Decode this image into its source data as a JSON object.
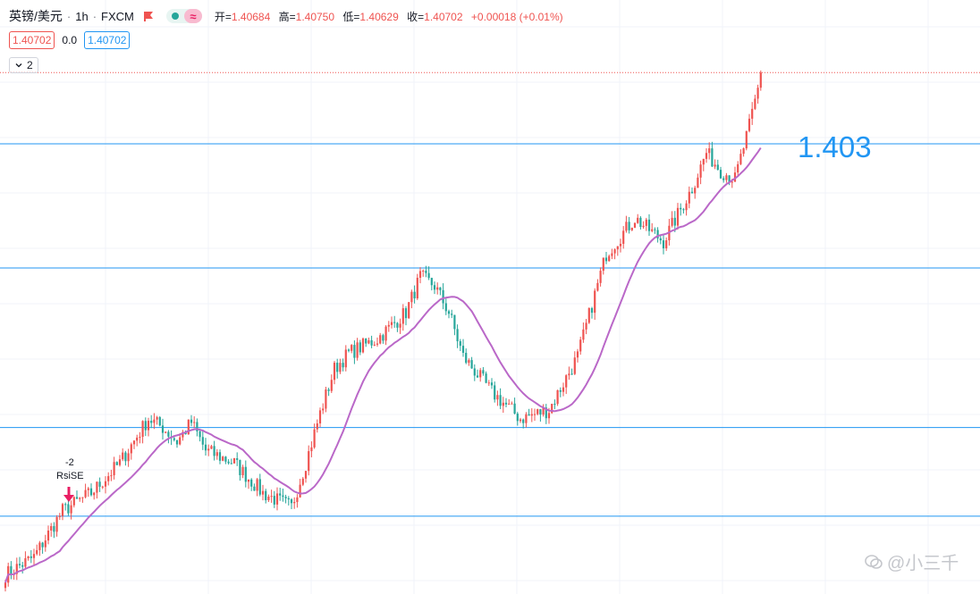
{
  "header": {
    "symbol": "英镑/美元",
    "interval": "1h",
    "source": "FXCM",
    "wave_label": "≈",
    "ohlc": [
      {
        "key": "开=",
        "value": "1.40684"
      },
      {
        "key": "高=",
        "value": "1.40750"
      },
      {
        "key": "低=",
        "value": "1.40629"
      },
      {
        "key": "收=",
        "value": "1.40702"
      }
    ],
    "change": "+0.00018 (+0.01%)"
  },
  "quote": {
    "bid": "1.40702",
    "spread": "0.0",
    "ask": "1.40702"
  },
  "indicator_toggle": {
    "count": "2"
  },
  "annotations": {
    "level_text": "1.403",
    "signal_value": "-2",
    "signal_name": "RsiSE"
  },
  "watermark": {
    "text": "@小三千"
  },
  "colors": {
    "up": "#ef5350",
    "down": "#26a69a",
    "ma": "#ba68c8",
    "hlines": "#2196f3",
    "price_line": "#ef5350"
  },
  "chart_data": {
    "type": "candlestick",
    "symbol": "英镑/美元",
    "interval": "1h",
    "current_price": 1.40702,
    "grid": true,
    "horizontal_levels": [
      1.403,
      1.396,
      1.387,
      1.382
    ],
    "anchors": {
      "index": [
        0,
        10,
        20,
        30,
        40,
        50,
        55,
        60,
        65,
        70,
        80,
        90,
        100,
        105,
        110,
        115,
        120,
        130,
        140,
        145,
        150,
        155,
        160,
        170,
        180,
        190,
        200,
        210,
        220,
        230,
        240,
        245,
        250,
        255,
        260,
        264
      ],
      "close": [
        1.3787,
        1.3797,
        1.3823,
        1.3833,
        1.385,
        1.3875,
        1.387,
        1.3862,
        1.3873,
        1.3857,
        1.385,
        1.3833,
        1.3825,
        1.385,
        1.3878,
        1.3903,
        1.3912,
        1.392,
        1.3935,
        1.3955,
        1.395,
        1.3935,
        1.391,
        1.389,
        1.3875,
        1.388,
        1.391,
        1.3968,
        1.3988,
        1.3975,
        1.4005,
        1.4025,
        1.4015,
        1.401,
        1.404,
        1.4068
      ]
    },
    "ma_period": 20,
    "signals": [
      {
        "index": 21,
        "value": -2,
        "name": "RsiSE"
      }
    ]
  }
}
